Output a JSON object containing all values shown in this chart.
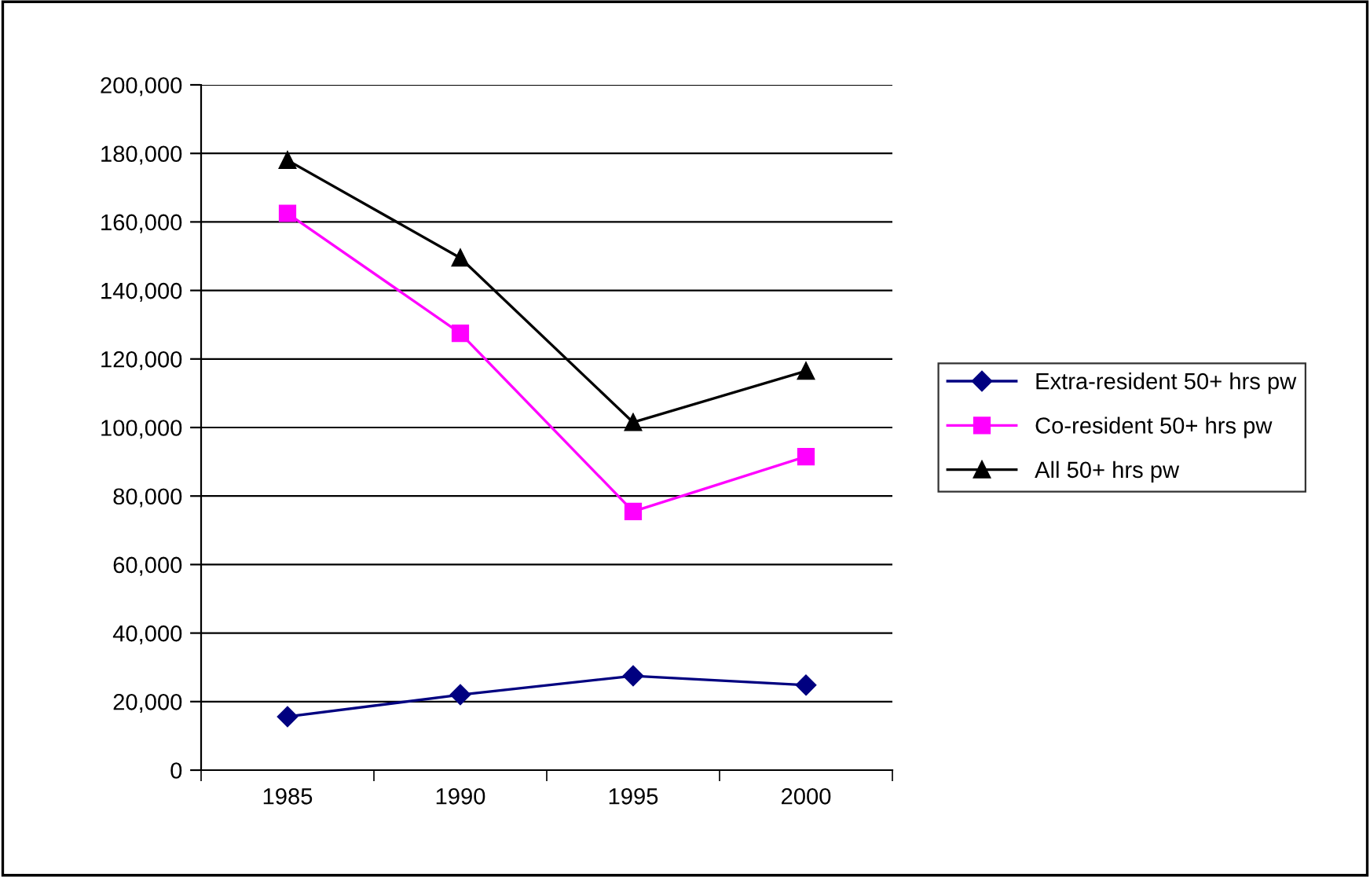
{
  "chart_data": {
    "type": "line",
    "categories": [
      "1985",
      "1990",
      "1995",
      "2000"
    ],
    "series": [
      {
        "name": "Extra-resident 50+ hrs pw",
        "color": "#000080",
        "marker": "diamond",
        "values": [
          15600,
          22000,
          27500,
          24800
        ]
      },
      {
        "name": "Co-resident 50+ hrs pw",
        "color": "#ff00ff",
        "marker": "square",
        "values": [
          162500,
          127500,
          75500,
          91500
        ]
      },
      {
        "name": "All 50+ hrs pw",
        "color": "#000000",
        "marker": "triangle",
        "values": [
          178000,
          149500,
          101500,
          116500
        ]
      }
    ],
    "ylim": [
      0,
      200000
    ],
    "yticks": [
      {
        "value": 0,
        "label": "0"
      },
      {
        "value": 20000,
        "label": "20,000"
      },
      {
        "value": 40000,
        "label": "40,000"
      },
      {
        "value": 60000,
        "label": "60,000"
      },
      {
        "value": 80000,
        "label": "80,000"
      },
      {
        "value": 100000,
        "label": "100,000"
      },
      {
        "value": 120000,
        "label": "120,000"
      },
      {
        "value": 140000,
        "label": "140,000"
      },
      {
        "value": 160000,
        "label": "160,000"
      },
      {
        "value": 180000,
        "label": "180,000"
      },
      {
        "value": 200000,
        "label": "200,000"
      }
    ],
    "grid": "y",
    "legend": "right"
  }
}
